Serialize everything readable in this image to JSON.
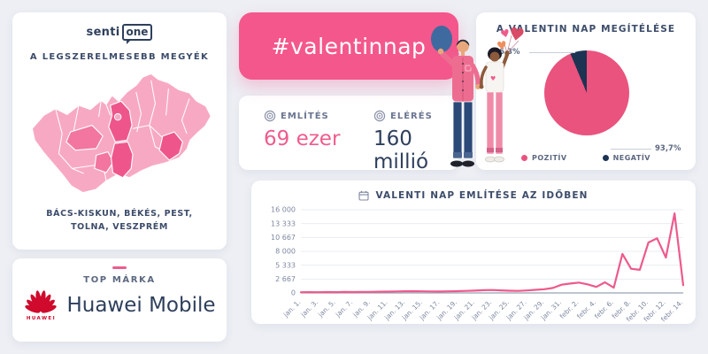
{
  "theme": {
    "background": "#edeff4",
    "card_bg": "#ffffff",
    "accent_pink": "#ee5c8d",
    "banner_pink": "#f4578b",
    "navy": "#2e3f5c",
    "slate_label": "#7d87a0",
    "map_base": "#f7a9c3",
    "map_highlight_dark": "#ee568b",
    "map_highlight_soft": "#f2769f",
    "huawei_red": "#cf0a2c"
  },
  "counties_card": {
    "logo_senti": "senti",
    "logo_one": "one",
    "title": "A LEGSZERELMESEBB MEGYÉK",
    "caption_line1": "BÁCS-KISKUN, BÉKÉS, PEST,",
    "caption_line2": "TOLNA, VESZPRÉM"
  },
  "brand_card": {
    "label": "TOP MÁRKA",
    "logo_word": "HUAWEI",
    "brand_name": "Huawei Mobile"
  },
  "banner": {
    "hashtag": "#valentinnap"
  },
  "stats_card": {
    "mentions_label": "EMLÍTÉS",
    "mentions_value": "69 ezer",
    "reach_label": "ELÉRÉS",
    "reach_value": "160 millió"
  },
  "chart_data": [
    {
      "type": "pie",
      "title": "A VALENTIN NAP MEGÍTÉLÉSE",
      "legend_position": "bottom",
      "slices": [
        {
          "label": "POZITÍV",
          "value": 93.7,
          "display": "93,7%",
          "color": "#e9537e"
        },
        {
          "label": "NEGATÍV",
          "value": 6.3,
          "display": "6,3%",
          "color": "#1d3352"
        }
      ]
    },
    {
      "type": "line",
      "title": "VALENTI NAP EMLÍTÉSE AZ IDŐBEN",
      "x_range": "jan. 1. – febr. 14.",
      "tick_every_days": 2,
      "x_tick_labels": [
        "jan. 1.",
        "jan. 3.",
        "jan. 5.",
        "jan. 7.",
        "jan. 9.",
        "jan. 11.",
        "jan. 13.",
        "jan. 15.",
        "jan. 17.",
        "jan. 19.",
        "jan. 21.",
        "jan. 23.",
        "jan. 25.",
        "jan. 27.",
        "jan. 29.",
        "jan. 31.",
        "febr. 2.",
        "febr. 4.",
        "febr. 6.",
        "febr. 8.",
        "febr. 10.",
        "febr. 12.",
        "febr. 14."
      ],
      "ylim": [
        0,
        16000
      ],
      "y_tick_labels": [
        "16 000",
        "13 333",
        "10 667",
        "8 000",
        "5 333",
        "2 667",
        "0"
      ],
      "grid": true,
      "line_color": "#ed5a8c",
      "values": [
        130,
        150,
        140,
        170,
        160,
        180,
        170,
        190,
        210,
        230,
        260,
        290,
        320,
        340,
        310,
        290,
        280,
        300,
        340,
        390,
        450,
        520,
        560,
        500,
        430,
        400,
        480,
        600,
        720,
        950,
        1580,
        1800,
        2000,
        1650,
        1150,
        2050,
        1000,
        7500,
        4650,
        4450,
        9700,
        10500,
        6800,
        15300,
        1500
      ]
    }
  ]
}
